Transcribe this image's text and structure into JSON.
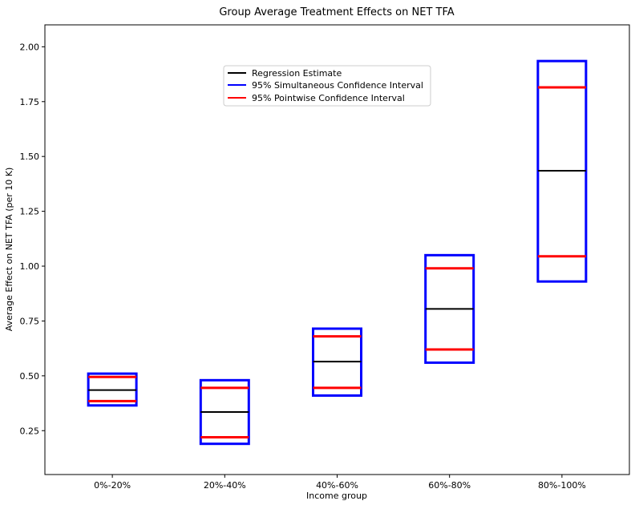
{
  "chart_data": {
    "type": "box",
    "title": "Group Average Treatment Effects on NET TFA",
    "xlabel": "Income group",
    "ylabel": "Average Effect on NET TFA (per 10 K)",
    "categories": [
      "0%-20%",
      "20%-40%",
      "40%-60%",
      "60%-80%",
      "80%-100%"
    ],
    "ylim": [
      0.05,
      2.1
    ],
    "yticks": [
      "0.25",
      "0.50",
      "0.75",
      "1.00",
      "1.25",
      "1.50",
      "1.75",
      "2.00"
    ],
    "ytick_values": [
      0.25,
      0.5,
      0.75,
      1.0,
      1.25,
      1.5,
      1.75,
      2.0
    ],
    "grid": false,
    "legend_position": "upper-center",
    "series": [
      {
        "name": "Regression Estimate",
        "color": "#000000",
        "values": [
          0.435,
          0.335,
          0.565,
          0.805,
          1.435
        ]
      },
      {
        "name": "95% Simultaneous Confidence Interval",
        "color": "#0000ff",
        "lower": [
          0.365,
          0.19,
          0.41,
          0.56,
          0.93
        ],
        "upper": [
          0.51,
          0.48,
          0.715,
          1.05,
          1.935
        ]
      },
      {
        "name": "95% Pointwise Confidence Interval",
        "color": "#ff0000",
        "lower": [
          0.385,
          0.22,
          0.445,
          0.62,
          1.045
        ],
        "upper": [
          0.495,
          0.445,
          0.68,
          0.99,
          1.815
        ]
      }
    ]
  }
}
